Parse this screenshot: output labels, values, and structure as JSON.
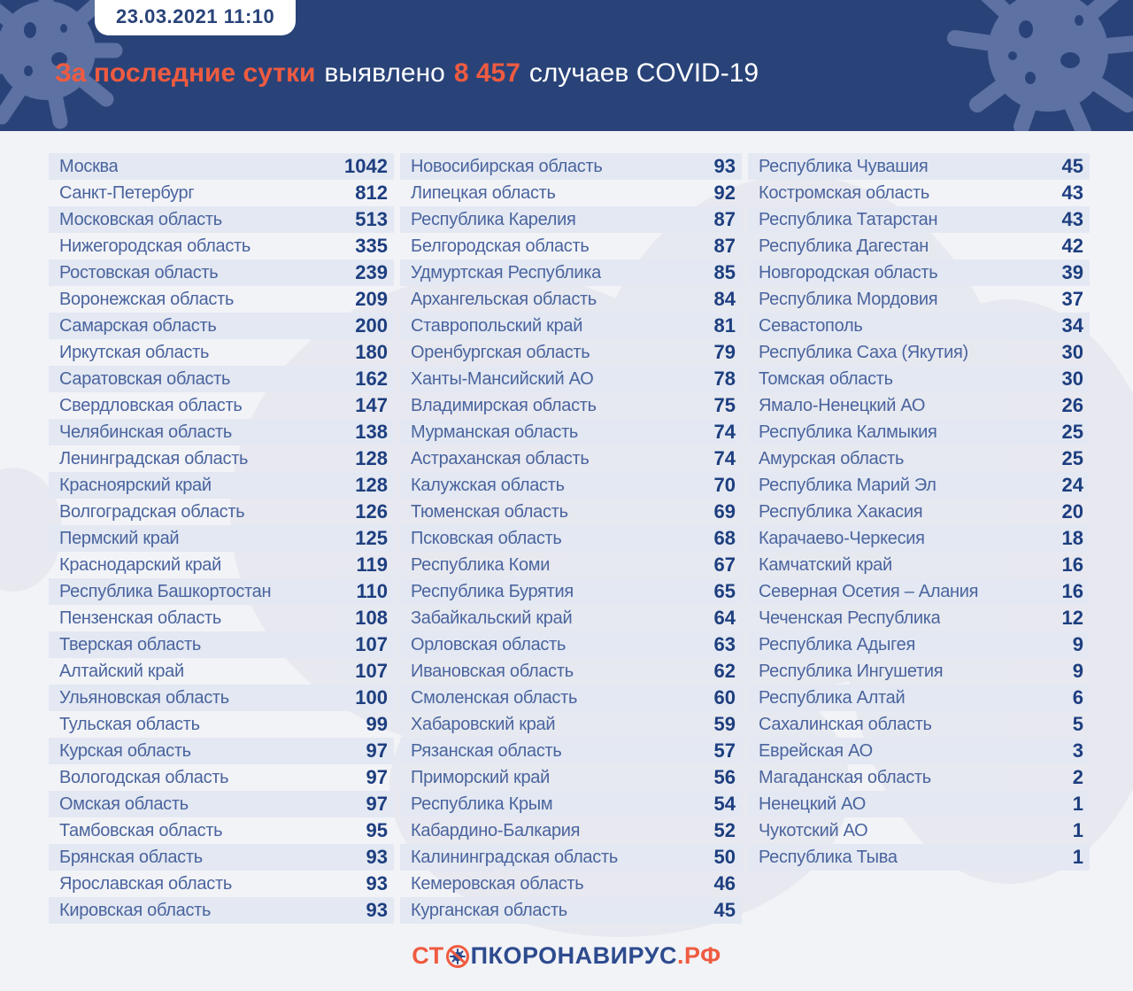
{
  "header": {
    "timestamp": "23.03.2021 11:10",
    "title": {
      "highlight": "За последние сутки",
      "middle": "выявлено",
      "count": "8 457",
      "suffix": "случаев COVID-19"
    }
  },
  "chart_data": {
    "type": "table",
    "title": "За последние сутки выявлено 8 457 случаев COVID-19",
    "timestamp": "23.03.2021 11:10",
    "total_new_cases": 8457,
    "columns": [
      {
        "rows": [
          [
            "Москва",
            1042
          ],
          [
            "Санкт-Петербург",
            812
          ],
          [
            "Московская область",
            513
          ],
          [
            "Нижегородская область",
            335
          ],
          [
            "Ростовская область",
            239
          ],
          [
            "Воронежская область",
            209
          ],
          [
            "Самарская область",
            200
          ],
          [
            "Иркутская область",
            180
          ],
          [
            "Саратовская область",
            162
          ],
          [
            "Свердловская область",
            147
          ],
          [
            "Челябинская область",
            138
          ],
          [
            "Ленинградская область",
            128
          ],
          [
            "Красноярский край",
            128
          ],
          [
            "Волгоградская область",
            126
          ],
          [
            "Пермский край",
            125
          ],
          [
            "Краснодарский край",
            119
          ],
          [
            "Республика Башкортостан",
            110
          ],
          [
            "Пензенская область",
            108
          ],
          [
            "Тверская область",
            107
          ],
          [
            "Алтайский край",
            107
          ],
          [
            "Ульяновская область",
            100
          ],
          [
            "Тульская область",
            99
          ],
          [
            "Курская область",
            97
          ],
          [
            "Вологодская область",
            97
          ],
          [
            "Омская область",
            97
          ],
          [
            "Тамбовская область",
            95
          ],
          [
            "Брянская область",
            93
          ],
          [
            "Ярославская область",
            93
          ],
          [
            "Кировская область",
            93
          ]
        ]
      },
      {
        "rows": [
          [
            "Новосибирская область",
            93
          ],
          [
            "Липецкая область",
            92
          ],
          [
            "Республика Карелия",
            87
          ],
          [
            "Белгородская область",
            87
          ],
          [
            "Удмуртская Республика",
            85
          ],
          [
            "Архангельская область",
            84
          ],
          [
            "Ставропольский край",
            81
          ],
          [
            "Оренбургская область",
            79
          ],
          [
            "Ханты-Мансийский АО",
            78
          ],
          [
            "Владимирская область",
            75
          ],
          [
            "Мурманская область",
            74
          ],
          [
            "Астраханская область",
            74
          ],
          [
            "Калужская область",
            70
          ],
          [
            "Тюменская область",
            69
          ],
          [
            "Псковская область",
            68
          ],
          [
            "Республика Коми",
            67
          ],
          [
            "Республика Бурятия",
            65
          ],
          [
            "Забайкальский край",
            64
          ],
          [
            "Орловская область",
            63
          ],
          [
            "Ивановская область",
            62
          ],
          [
            "Смоленская область",
            60
          ],
          [
            "Хабаровский край",
            59
          ],
          [
            "Рязанская область",
            57
          ],
          [
            "Приморский край",
            56
          ],
          [
            "Республика Крым",
            54
          ],
          [
            "Кабардино-Балкария",
            52
          ],
          [
            "Калининградская область",
            50
          ],
          [
            "Кемеровская область",
            46
          ],
          [
            "Курганская область",
            45
          ]
        ]
      },
      {
        "rows": [
          [
            "Республика Чувашия",
            45
          ],
          [
            "Костромская область",
            43
          ],
          [
            "Республика Татарстан",
            43
          ],
          [
            "Республика Дагестан",
            42
          ],
          [
            "Новгородская область",
            39
          ],
          [
            "Республика Мордовия",
            37
          ],
          [
            "Севастополь",
            34
          ],
          [
            "Республика Саха (Якутия)",
            30
          ],
          [
            "Томская область",
            30
          ],
          [
            "Ямало-Ненецкий АО",
            26
          ],
          [
            "Республика Калмыкия",
            25
          ],
          [
            "Амурская область",
            25
          ],
          [
            "Республика Марий Эл",
            24
          ],
          [
            "Республика Хакасия",
            20
          ],
          [
            "Карачаево-Черкесия",
            18
          ],
          [
            "Камчатский край",
            16
          ],
          [
            "Северная Осетия – Алания",
            16
          ],
          [
            "Чеченская Республика",
            12
          ],
          [
            "Республика Адыгея",
            9
          ],
          [
            "Республика Ингушетия",
            9
          ],
          [
            "Республика Алтай",
            6
          ],
          [
            "Сахалинская область",
            5
          ],
          [
            "Еврейская АО",
            3
          ],
          [
            "Магаданская область",
            2
          ],
          [
            "Ненецкий АО",
            1
          ],
          [
            "Чукотский АО",
            1
          ],
          [
            "Республика Тыва",
            1
          ]
        ]
      }
    ]
  },
  "footer": {
    "logo": {
      "prefix": "СТ",
      "icon": "virus-stop-icon",
      "middle": "ПКОРОНАВИРУС",
      "suffix": ".РФ"
    }
  },
  "colors": {
    "header_blue": "#294379",
    "splash_blue": "#5d71a3",
    "accent_orange": "#ef5b40",
    "body_bg": "#f2f3f7",
    "stripe": "#e3e8f2",
    "region_text": "#4a649e",
    "value_text": "#1d3e7f",
    "logo_navy": "#2d4b8e"
  }
}
